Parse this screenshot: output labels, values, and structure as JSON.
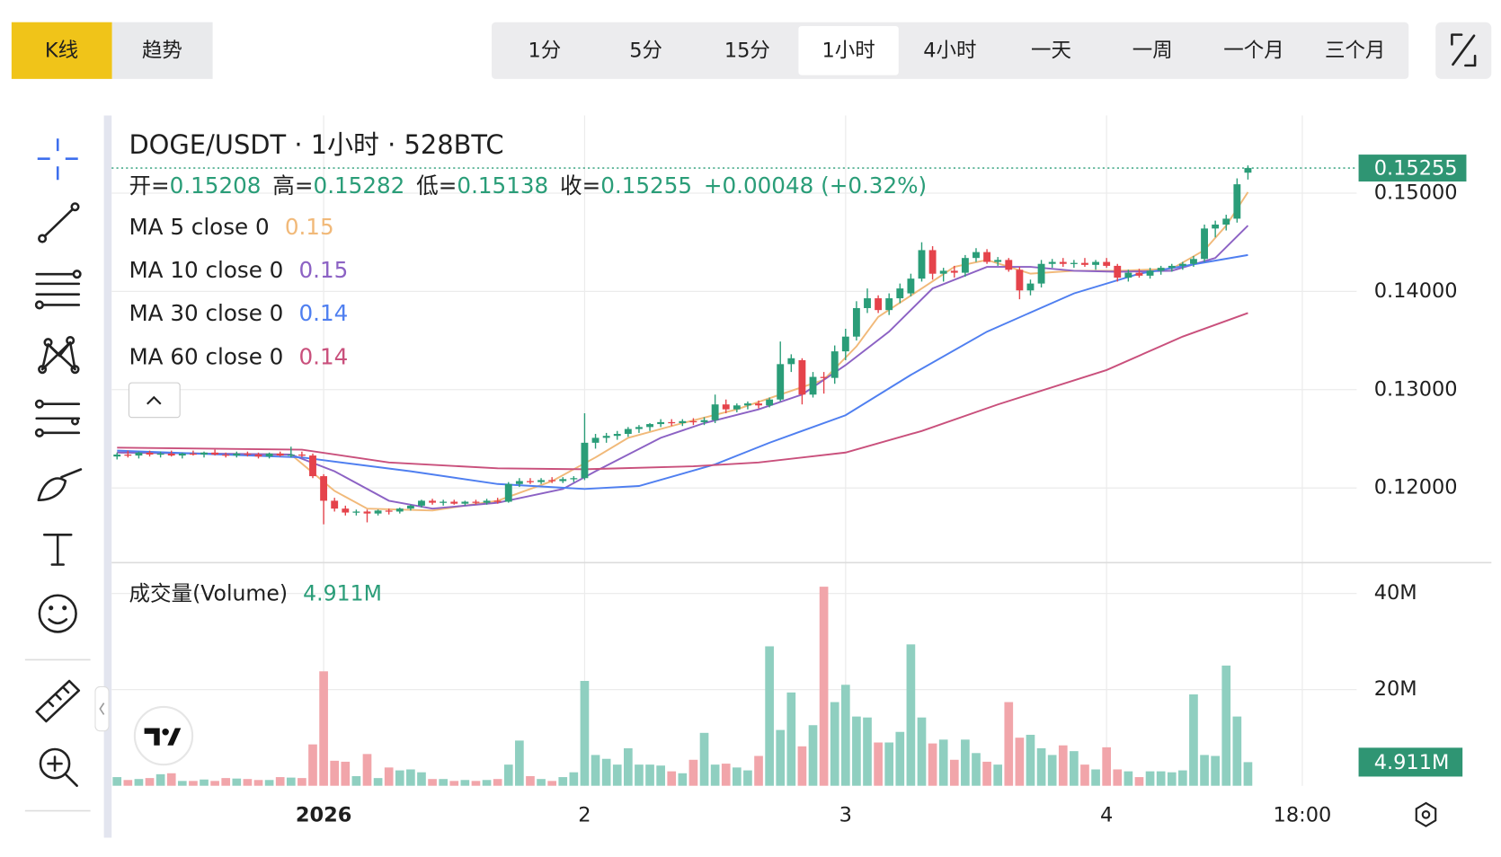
{
  "ui": {
    "tabs": [
      "K线",
      "趋势"
    ],
    "active_tab": "K线",
    "intervals": [
      "1分",
      "5分",
      "15分",
      "1小时",
      "4小时",
      "一天",
      "一周",
      "一个月",
      "三个月"
    ],
    "active_interval": "1小时"
  },
  "chart_data": {
    "type": "candlestick",
    "title": "DOGE/USDT · 1小时 · 528BTC",
    "ohlc_labels": [
      "开=",
      "高=",
      "低=",
      "收="
    ],
    "change": "+0.00048 (+0.32%)",
    "up_color": "#2a9d78",
    "down_color": "#e5434b",
    "grid": true,
    "ylim": [
      0.1124,
      0.1579
    ],
    "yticks": [
      {
        "value": 0.12,
        "label": "0.12000"
      },
      {
        "value": 0.13,
        "label": "0.13000"
      },
      {
        "value": 0.14,
        "label": "0.14000"
      },
      {
        "value": 0.15,
        "label": "0.15000"
      }
    ],
    "xlim": [
      -0.5,
      114
    ],
    "xticks": [
      {
        "value": 19,
        "label": "2026"
      },
      {
        "value": 43,
        "label": "2"
      },
      {
        "value": 67,
        "label": "3"
      },
      {
        "value": 91,
        "label": "4"
      },
      {
        "value": 109,
        "label": "18:00"
      }
    ],
    "ohlc": [
      [
        0.1232,
        0.1236,
        0.1229,
        0.1234
      ],
      [
        0.1234,
        0.1238,
        0.1231,
        0.1233
      ],
      [
        0.1233,
        0.1237,
        0.123,
        0.1236
      ],
      [
        0.1236,
        0.1238,
        0.1232,
        0.1234
      ],
      [
        0.1234,
        0.1237,
        0.1231,
        0.1235
      ],
      [
        0.1235,
        0.1238,
        0.1232,
        0.1233
      ],
      [
        0.1233,
        0.1236,
        0.123,
        0.1235
      ],
      [
        0.1235,
        0.1238,
        0.1233,
        0.1234
      ],
      [
        0.1234,
        0.1237,
        0.1231,
        0.1236
      ],
      [
        0.1236,
        0.1239,
        0.1233,
        0.1234
      ],
      [
        0.1234,
        0.1236,
        0.1231,
        0.1233
      ],
      [
        0.1233,
        0.1237,
        0.1231,
        0.1235
      ],
      [
        0.1235,
        0.1237,
        0.1232,
        0.1234
      ],
      [
        0.1234,
        0.1236,
        0.123,
        0.1232
      ],
      [
        0.1232,
        0.1236,
        0.123,
        0.1235
      ],
      [
        0.1235,
        0.1237,
        0.1232,
        0.1233
      ],
      [
        0.1233,
        0.1242,
        0.1231,
        0.1234
      ],
      [
        0.1234,
        0.1237,
        0.1231,
        0.1233
      ],
      [
        0.1233,
        0.1235,
        0.121,
        0.1212
      ],
      [
        0.1212,
        0.1214,
        0.1163,
        0.1187
      ],
      [
        0.1187,
        0.119,
        0.1176,
        0.1179
      ],
      [
        0.1179,
        0.1182,
        0.1172,
        0.1175
      ],
      [
        0.1175,
        0.1178,
        0.1172,
        0.1176
      ],
      [
        0.1176,
        0.1178,
        0.1165,
        0.1174
      ],
      [
        0.1174,
        0.1178,
        0.1172,
        0.1177
      ],
      [
        0.1177,
        0.1179,
        0.1173,
        0.1176
      ],
      [
        0.1176,
        0.118,
        0.1174,
        0.1179
      ],
      [
        0.1179,
        0.1183,
        0.1177,
        0.1182
      ],
      [
        0.1182,
        0.1188,
        0.118,
        0.1187
      ],
      [
        0.1187,
        0.1189,
        0.1183,
        0.1185
      ],
      [
        0.1185,
        0.1188,
        0.1182,
        0.1186
      ],
      [
        0.1186,
        0.1188,
        0.1183,
        0.1184
      ],
      [
        0.1184,
        0.1187,
        0.1182,
        0.1186
      ],
      [
        0.1186,
        0.1188,
        0.1183,
        0.1185
      ],
      [
        0.1185,
        0.1189,
        0.1183,
        0.1187
      ],
      [
        0.1187,
        0.119,
        0.1184,
        0.1186
      ],
      [
        0.1186,
        0.1206,
        0.1185,
        0.1204
      ],
      [
        0.1204,
        0.121,
        0.1201,
        0.1207
      ],
      [
        0.1207,
        0.121,
        0.1204,
        0.1206
      ],
      [
        0.1206,
        0.121,
        0.1204,
        0.1208
      ],
      [
        0.1208,
        0.1211,
        0.1205,
        0.1207
      ],
      [
        0.1207,
        0.1211,
        0.1205,
        0.1209
      ],
      [
        0.1209,
        0.1212,
        0.1206,
        0.121
      ],
      [
        0.121,
        0.1276,
        0.1208,
        0.1246
      ],
      [
        0.1246,
        0.1255,
        0.124,
        0.1251
      ],
      [
        0.1251,
        0.1256,
        0.1246,
        0.1253
      ],
      [
        0.1253,
        0.1258,
        0.1249,
        0.1255
      ],
      [
        0.1255,
        0.1262,
        0.1252,
        0.126
      ],
      [
        0.126,
        0.1264,
        0.1256,
        0.1262
      ],
      [
        0.1262,
        0.1266,
        0.1258,
        0.1265
      ],
      [
        0.1265,
        0.127,
        0.1262,
        0.1267
      ],
      [
        0.1267,
        0.127,
        0.1263,
        0.1266
      ],
      [
        0.1266,
        0.127,
        0.1263,
        0.1268
      ],
      [
        0.1268,
        0.1271,
        0.1264,
        0.1267
      ],
      [
        0.1267,
        0.1272,
        0.1264,
        0.1269
      ],
      [
        0.1269,
        0.1295,
        0.1266,
        0.1285
      ],
      [
        0.1285,
        0.129,
        0.1276,
        0.128
      ],
      [
        0.128,
        0.1286,
        0.1277,
        0.1284
      ],
      [
        0.1284,
        0.1288,
        0.128,
        0.1286
      ],
      [
        0.1286,
        0.1289,
        0.1281,
        0.1284
      ],
      [
        0.1284,
        0.1292,
        0.1282,
        0.129
      ],
      [
        0.129,
        0.1349,
        0.1288,
        0.1326
      ],
      [
        0.1326,
        0.1336,
        0.1318,
        0.1332
      ],
      [
        0.133,
        0.1332,
        0.1285,
        0.1295
      ],
      [
        0.1295,
        0.1318,
        0.1292,
        0.1313
      ],
      [
        0.1313,
        0.1318,
        0.1296,
        0.1312
      ],
      [
        0.1312,
        0.1345,
        0.1306,
        0.1339
      ],
      [
        0.1339,
        0.1362,
        0.133,
        0.1354
      ],
      [
        0.1354,
        0.139,
        0.135,
        0.1383
      ],
      [
        0.1383,
        0.1403,
        0.1378,
        0.1393
      ],
      [
        0.1393,
        0.1396,
        0.1378,
        0.1381
      ],
      [
        0.1381,
        0.1398,
        0.1376,
        0.1393
      ],
      [
        0.1393,
        0.1408,
        0.1388,
        0.1403
      ],
      [
        0.1398,
        0.1418,
        0.1395,
        0.1413
      ],
      [
        0.1413,
        0.145,
        0.141,
        0.1442
      ],
      [
        0.1442,
        0.1446,
        0.1412,
        0.1418
      ],
      [
        0.1418,
        0.1424,
        0.141,
        0.1421
      ],
      [
        0.1421,
        0.1426,
        0.1414,
        0.1419
      ],
      [
        0.1419,
        0.1437,
        0.1415,
        0.1434
      ],
      [
        0.1434,
        0.1444,
        0.143,
        0.144
      ],
      [
        0.144,
        0.1443,
        0.1428,
        0.143
      ],
      [
        0.143,
        0.1435,
        0.1426,
        0.1432
      ],
      [
        0.1432,
        0.1434,
        0.142,
        0.1422
      ],
      [
        0.1422,
        0.1425,
        0.1392,
        0.1401
      ],
      [
        0.1401,
        0.1412,
        0.1396,
        0.1408
      ],
      [
        0.1408,
        0.1432,
        0.1404,
        0.1428
      ],
      [
        0.1428,
        0.1433,
        0.1424,
        0.143
      ],
      [
        0.143,
        0.1434,
        0.1425,
        0.1428
      ],
      [
        0.1428,
        0.1432,
        0.1424,
        0.1429
      ],
      [
        0.1429,
        0.1434,
        0.1425,
        0.1427
      ],
      [
        0.1427,
        0.1432,
        0.1422,
        0.143
      ],
      [
        0.143,
        0.1434,
        0.1424,
        0.1426
      ],
      [
        0.1426,
        0.1428,
        0.141,
        0.1414
      ],
      [
        0.1414,
        0.1422,
        0.141,
        0.1419
      ],
      [
        0.1419,
        0.1423,
        0.1414,
        0.1416
      ],
      [
        0.1416,
        0.1424,
        0.1413,
        0.1421
      ],
      [
        0.1421,
        0.1426,
        0.1417,
        0.1424
      ],
      [
        0.1424,
        0.1428,
        0.142,
        0.1426
      ],
      [
        0.1426,
        0.143,
        0.1422,
        0.1428
      ],
      [
        0.1428,
        0.1436,
        0.1425,
        0.1433
      ],
      [
        0.1433,
        0.1468,
        0.143,
        0.1464
      ],
      [
        0.1464,
        0.1472,
        0.1455,
        0.1468
      ],
      [
        0.1468,
        0.1478,
        0.1462,
        0.1474
      ],
      [
        0.1474,
        0.1515,
        0.147,
        0.1509
      ],
      [
        0.15208,
        0.15282,
        0.15138,
        0.15255
      ]
    ],
    "series": [
      {
        "name": "MA 5 close 0",
        "color": "#f1b979",
        "last_label": "0.15",
        "x": [
          0,
          16,
          20,
          23,
          29,
          35,
          40,
          44,
          47,
          52,
          57,
          61,
          65,
          68,
          70,
          74,
          77,
          80,
          84,
          88,
          92,
          97,
          100,
          102,
          104
        ],
        "values": [
          0.1236,
          0.1234,
          0.1197,
          0.1179,
          0.1177,
          0.1187,
          0.1207,
          0.1231,
          0.1251,
          0.1266,
          0.128,
          0.1295,
          0.131,
          0.1344,
          0.1374,
          0.1403,
          0.1425,
          0.1432,
          0.1418,
          0.1421,
          0.1421,
          0.1423,
          0.1442,
          0.1467,
          0.1501
        ]
      },
      {
        "name": "MA 10 close 0",
        "color": "#8c62c4",
        "last_label": "0.15",
        "x": [
          0,
          16,
          20,
          25,
          29,
          35,
          41,
          44,
          50,
          54,
          59,
          63,
          67,
          71,
          75,
          80,
          84,
          88,
          92,
          97,
          101,
          104
        ],
        "values": [
          0.1236,
          0.1234,
          0.1217,
          0.1187,
          0.1179,
          0.1185,
          0.1199,
          0.1217,
          0.1251,
          0.1266,
          0.128,
          0.1295,
          0.1325,
          0.1359,
          0.1403,
          0.1425,
          0.1425,
          0.1421,
          0.142,
          0.1421,
          0.1434,
          0.1467
        ]
      },
      {
        "name": "MA 30 close 0",
        "color": "#4f7ff0",
        "last_label": "0.14",
        "x": [
          0,
          17,
          27,
          35,
          43,
          48,
          55,
          60,
          67,
          73,
          80,
          88,
          94,
          104
        ],
        "values": [
          0.1238,
          0.1231,
          0.1217,
          0.1204,
          0.1199,
          0.1202,
          0.1224,
          0.1246,
          0.1274,
          0.1315,
          0.1359,
          0.1398,
          0.1418,
          0.1437
        ]
      },
      {
        "name": "MA 60 close 0",
        "color": "#c9507c",
        "last_label": "0.14",
        "x": [
          0,
          17,
          25,
          35,
          43,
          53,
          59,
          67,
          74,
          81,
          91,
          98,
          104
        ],
        "values": [
          0.1241,
          0.1239,
          0.1226,
          0.122,
          0.1219,
          0.1222,
          0.1226,
          0.1236,
          0.1258,
          0.1285,
          0.132,
          0.1354,
          0.1378
        ]
      }
    ],
    "volume": {
      "title": "成交量(Volume)",
      "value_label": "4.911M",
      "up_color": "#8fcfc0",
      "down_color": "#f1a5aa",
      "badge_color": "#2f9573",
      "ylim": [
        0,
        45.4
      ],
      "yticks": [
        {
          "value": 20,
          "label": "20M"
        },
        {
          "value": 40,
          "label": "40M"
        }
      ],
      "values": [
        1.8,
        1.2,
        1.4,
        1.6,
        2.4,
        2.6,
        1.0,
        1.0,
        1.3,
        1.0,
        1.6,
        1.5,
        1.4,
        1.2,
        1.2,
        1.8,
        1.7,
        1.6,
        8.6,
        23.8,
        5.2,
        5.0,
        2.0,
        6.6,
        1.6,
        3.8,
        3.2,
        3.4,
        2.8,
        1.4,
        1.4,
        1.0,
        1.2,
        1.0,
        1.2,
        1.4,
        4.4,
        9.4,
        2.0,
        1.4,
        1.0,
        1.8,
        2.8,
        21.8,
        6.4,
        5.6,
        4.4,
        7.8,
        4.4,
        4.4,
        4.2,
        3.0,
        2.6,
        5.4,
        11.0,
        4.4,
        4.6,
        3.8,
        3.2,
        6.2,
        29.0,
        11.6,
        19.4,
        8.2,
        12.6,
        41.4,
        17.4,
        21.0,
        14.4,
        14.2,
        9.0,
        9.0,
        11.2,
        29.4,
        14.2,
        8.8,
        9.6,
        5.4,
        9.6,
        6.8,
        5.0,
        4.4,
        17.4,
        10.0,
        10.6,
        7.8,
        6.4,
        8.4,
        7.2,
        4.4,
        3.4,
        8.0,
        3.4,
        3.0,
        1.8,
        3.0,
        3.0,
        2.8,
        3.2,
        19.0,
        6.4,
        6.2,
        25.0,
        14.4,
        4.911
      ]
    }
  }
}
